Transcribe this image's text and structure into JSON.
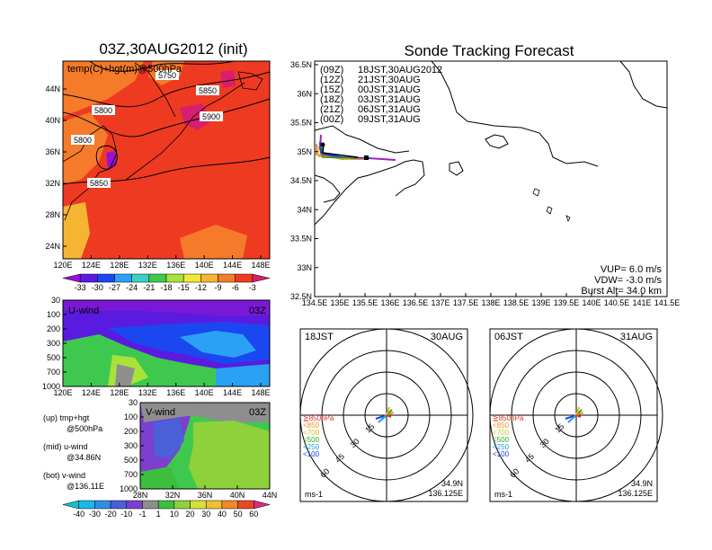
{
  "left_title": "03Z,30AUG2012 (init)",
  "right_title": "Sonde Tracking Forecast",
  "map500": {
    "label": "temp(C)+hgt(m)@500hPa",
    "lat_ticks": [
      "44N",
      "40N",
      "36N",
      "32N",
      "28N",
      "24N"
    ],
    "lon_ticks": [
      "120E",
      "124E",
      "128E",
      "132E",
      "136E",
      "140E",
      "144E",
      "148E"
    ],
    "contour_labels": [
      "5750",
      "5850",
      "5800",
      "5900",
      "5800",
      "5850"
    ]
  },
  "temp_colorbar": {
    "values": [
      "-33",
      "-30",
      "-27",
      "-24",
      "-21",
      "-18",
      "-15",
      "-12",
      "-9",
      "-6",
      "-3"
    ],
    "colors": [
      "#9b0fd6",
      "#5a1be0",
      "#1b47f0",
      "#2aa1f5",
      "#3ad1c4",
      "#3ec94e",
      "#a8e33a",
      "#f2e83a",
      "#f5b532",
      "#f57a2a",
      "#ef3a22",
      "#d81e6e"
    ]
  },
  "uwind": {
    "title": "U-wind",
    "time": "03Z",
    "p_ticks": [
      "30",
      "100",
      "200",
      "300",
      "500",
      "700",
      "1000"
    ],
    "lon_ticks": [
      "120E",
      "124E",
      "128E",
      "132E",
      "136E",
      "140E",
      "144E",
      "148E"
    ]
  },
  "vwind": {
    "title": "V-wind",
    "time": "03Z",
    "p_ticks": [
      "30",
      "100",
      "200",
      "300",
      "500",
      "700",
      "1000"
    ],
    "lat_ticks": [
      "28N",
      "32N",
      "36N",
      "40N",
      "44N"
    ]
  },
  "notes": {
    "line1a": "(up) tmp+hgt",
    "line1b": "@500hPa",
    "line2a": "(mid) u-wind",
    "line2b": "@34.86N",
    "line3a": "(bot) v-wind",
    "line3b": "@136.11E"
  },
  "wind_colorbar": {
    "values": [
      "-40",
      "-30",
      "-20",
      "-10",
      "-1",
      "1",
      "10",
      "20",
      "30",
      "40",
      "50",
      "60"
    ],
    "colors": [
      "#0fc3c9",
      "#19b8e8",
      "#2d8fe5",
      "#4b5fd8",
      "#7c3fd0",
      "#8e8e8e",
      "#3dbf3d",
      "#8fd13b",
      "#d7e03a",
      "#f0c030",
      "#f08a2a",
      "#e8482a",
      "#e02a7a"
    ]
  },
  "tracking": {
    "legend": [
      {
        "time": "(09Z)",
        "label": "18JST,30AUG2012",
        "color": "#000000"
      },
      {
        "time": "(12Z)",
        "label": "21JST,30AUG",
        "color": "#a020c0"
      },
      {
        "time": "(15Z)",
        "label": "00JST,31AUG",
        "color": "#2040e0"
      },
      {
        "time": "(18Z)",
        "label": "03JST,31AUG",
        "color": "#20a020"
      },
      {
        "time": "(21Z)",
        "label": "06JST,31AUG",
        "color": "#e8c020"
      },
      {
        "time": "(00Z)",
        "label": "09JST,31AUG",
        "color": "#e87020"
      }
    ],
    "lat_ticks": [
      "36.5N",
      "36N",
      "35.5N",
      "35N",
      "34.5N",
      "34N",
      "33.5N",
      "33N",
      "32.5N"
    ],
    "lon_ticks": [
      "134.5E",
      "135E",
      "135.5E",
      "136E",
      "136.5E",
      "137E",
      "137.5E",
      "138E",
      "138.5E",
      "139E",
      "139.5E",
      "140E",
      "140.5E",
      "141E",
      "141.5E"
    ],
    "info": [
      "VUP= 6.0 m/s",
      "VDW= -3.0 m/s",
      "Burst Alt= 34.0 km"
    ]
  },
  "hodo_left": {
    "time": "18JST",
    "date": "30AUG",
    "rings": [
      "15",
      "30",
      "45",
      "60"
    ],
    "levels": [
      {
        "label": "≧850hPa",
        "color": "#e03020"
      },
      {
        "label": "<850",
        "color": "#f09020"
      },
      {
        "label": "<700",
        "color": "#d0c020"
      },
      {
        "label": "<500",
        "color": "#20b020"
      },
      {
        "label": "<250",
        "color": "#20a0e0"
      },
      {
        "label": "<100",
        "color": "#2040e0"
      }
    ],
    "unit": "ms-1",
    "lat": "34.9N",
    "lon": "136.125E"
  },
  "hodo_right": {
    "time": "06JST",
    "date": "31AUG",
    "rings": [
      "15",
      "30",
      "45",
      "60"
    ],
    "levels": [
      {
        "label": "≧850hPa",
        "color": "#e03020"
      },
      {
        "label": "<850",
        "color": "#f09020"
      },
      {
        "label": "<700",
        "color": "#d0c020"
      },
      {
        "label": "<500",
        "color": "#20b020"
      },
      {
        "label": "<250",
        "color": "#20a0e0"
      },
      {
        "label": "<100",
        "color": "#2040e0"
      }
    ],
    "unit": "ms-1",
    "lat": "34.9N",
    "lon": "136.125E"
  }
}
